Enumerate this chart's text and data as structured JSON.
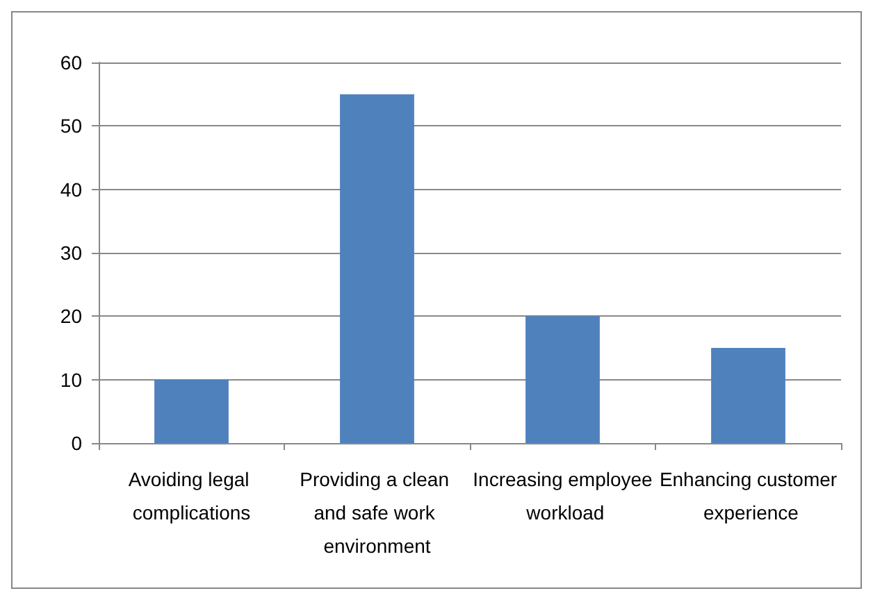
{
  "chart_data": {
    "type": "bar",
    "categories": [
      "Avoiding legal complications",
      "Providing a clean and safe work environment",
      "Increasing employee workload",
      "Enhancing customer experience"
    ],
    "values": [
      10,
      55,
      20,
      15
    ],
    "color": "#4f81bd",
    "ylim": [
      0,
      60
    ],
    "yticks": [
      0,
      10,
      20,
      30,
      40,
      50,
      60
    ],
    "grid": "y"
  }
}
